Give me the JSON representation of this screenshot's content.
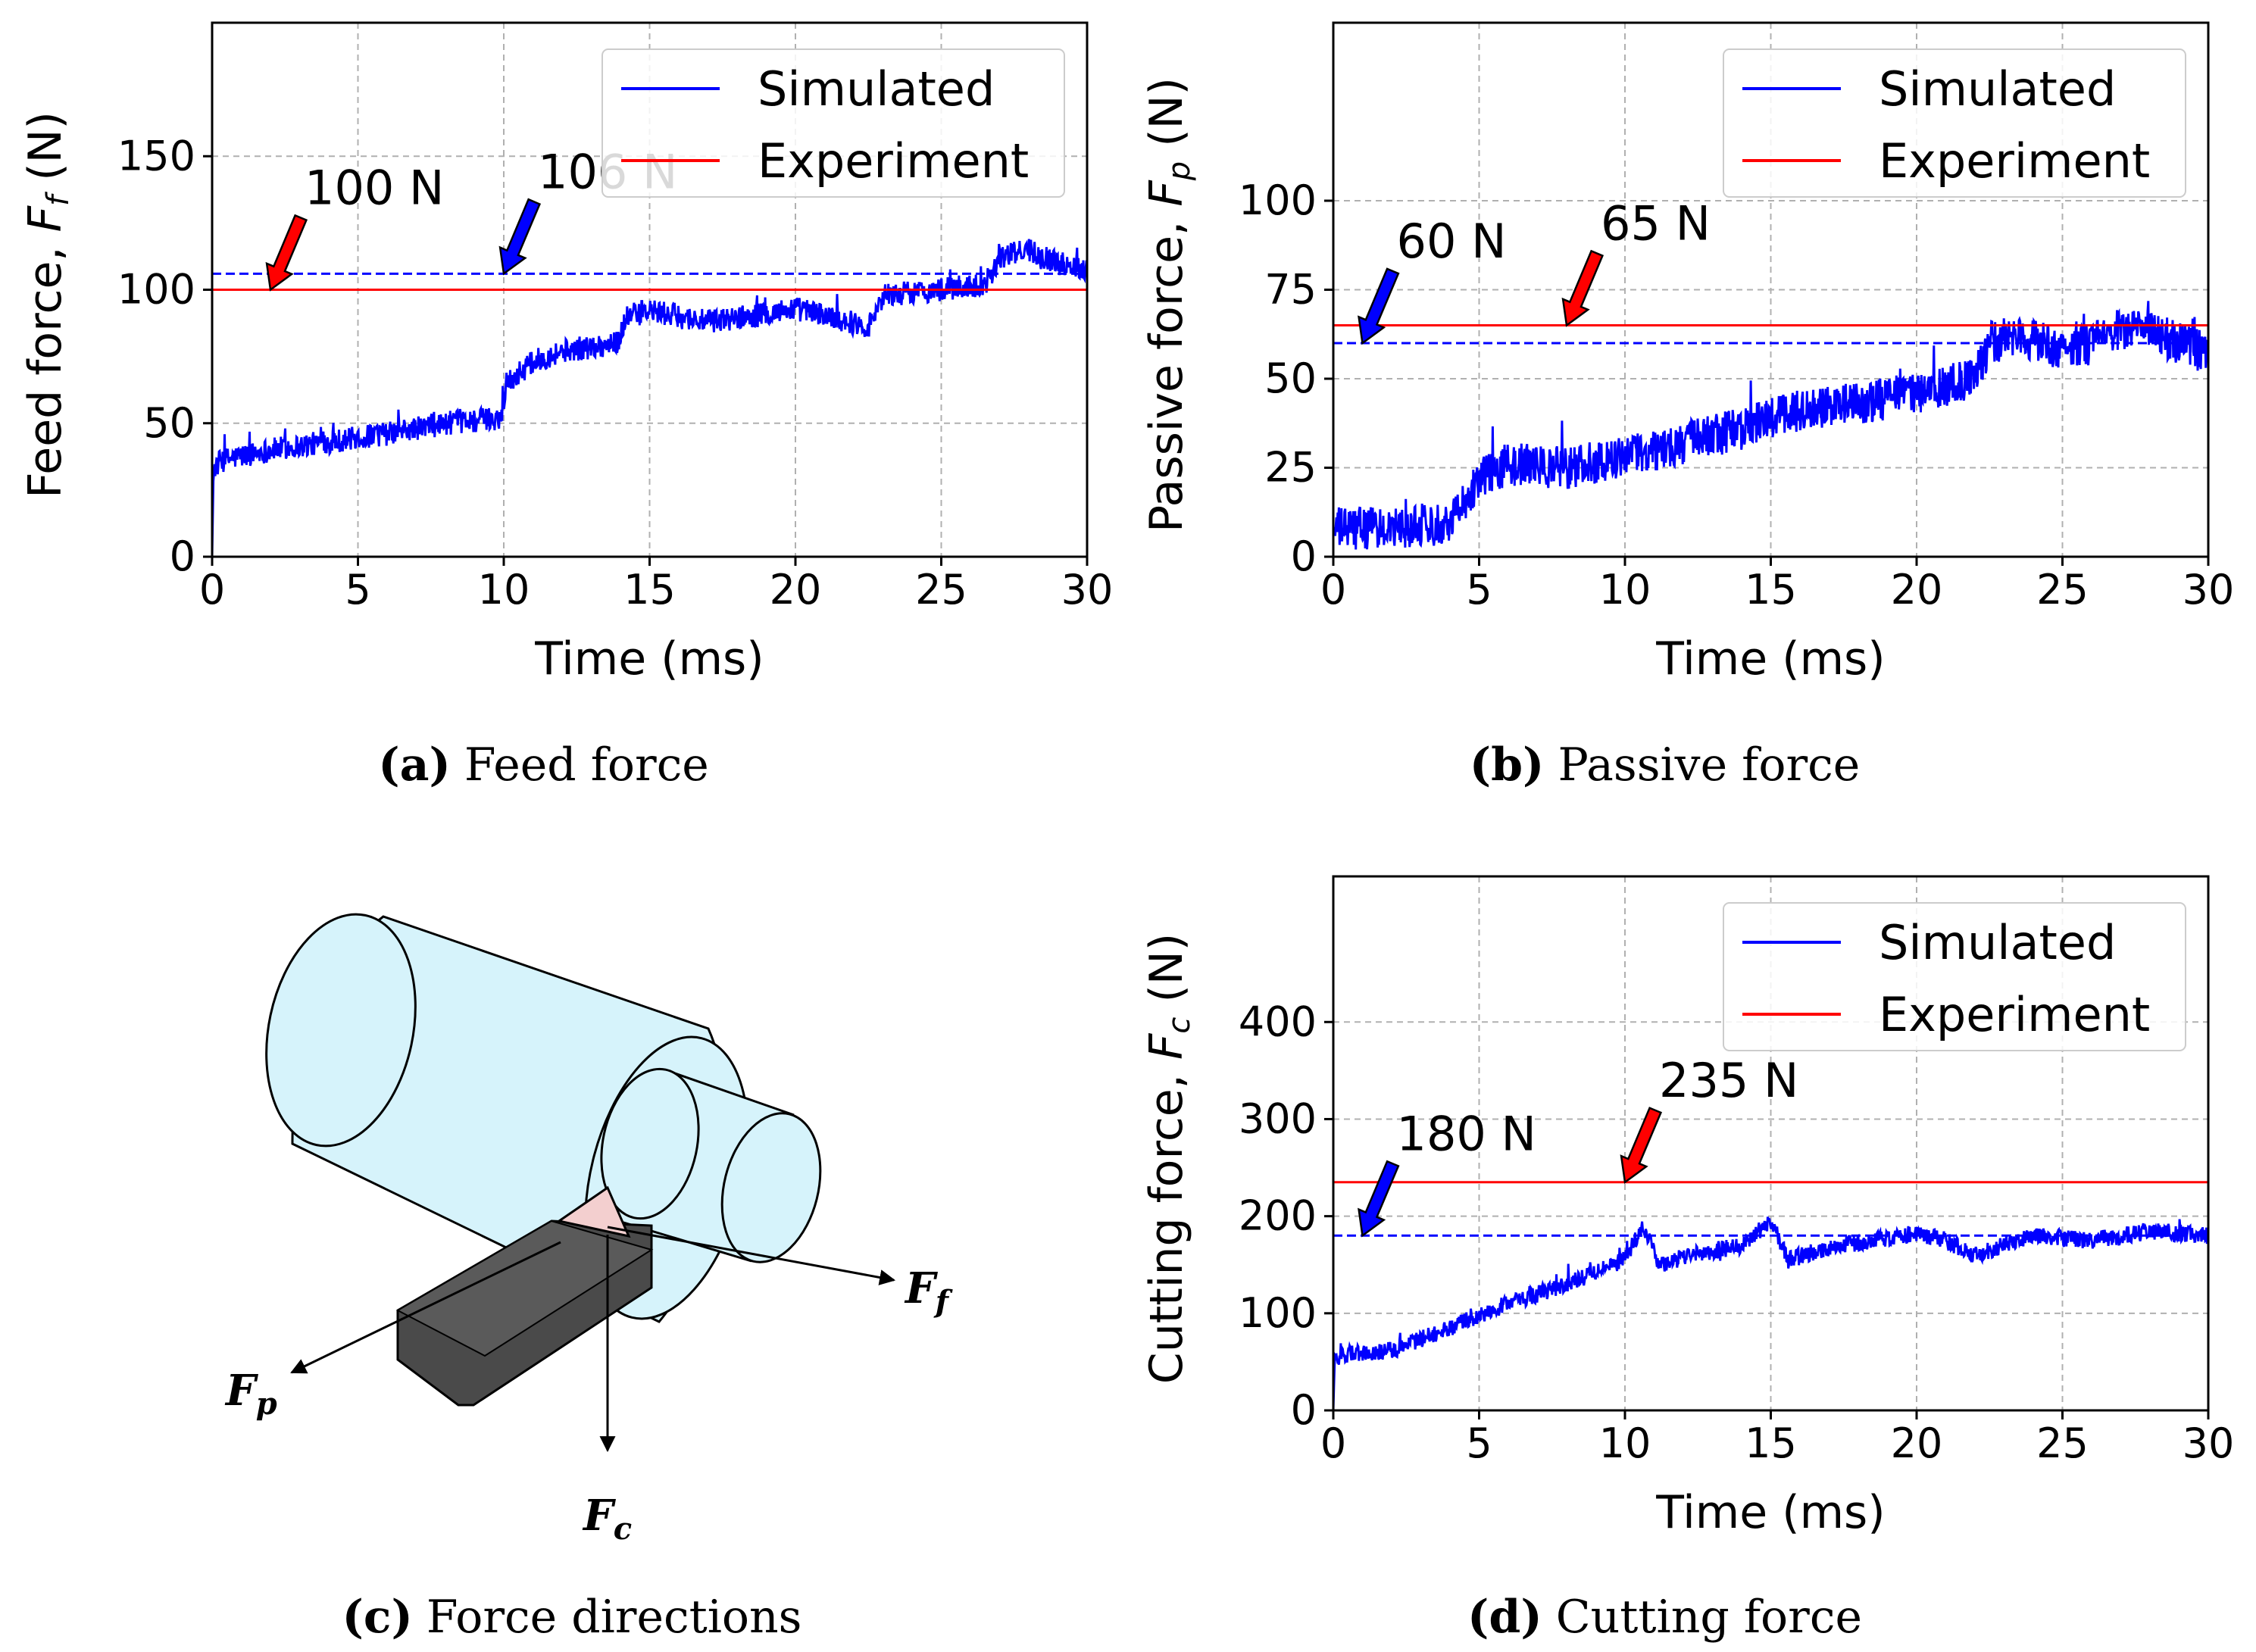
{
  "colors": {
    "simulated": "#0000ff",
    "experiment": "#ff0000",
    "grid": "#b0b0b0",
    "cylinder": "#d6f3fb",
    "tool_body": "#4a4a4a",
    "tool_tip": "#f3cfcf"
  },
  "chart_data": [
    {
      "id": "a",
      "type": "line",
      "caption_tag": "(a)",
      "caption_text": "Feed force",
      "xlabel": "Time (ms)",
      "ylabel_main": "Feed force, ",
      "ylabel_sym": "F",
      "ylabel_sub": "f",
      "ylabel_unit": " (N)",
      "xlim": [
        0,
        30
      ],
      "ylim": [
        0,
        200
      ],
      "xticks": [
        0,
        5,
        10,
        15,
        20,
        25,
        30
      ],
      "yticks": [
        0,
        50,
        100,
        150
      ],
      "legend": {
        "position": "top-right",
        "entries": [
          "Simulated",
          "Experiment"
        ]
      },
      "series": [
        {
          "name": "Simulated",
          "kind": "noisy",
          "x": [
            0,
            0.05,
            0.3,
            2,
            4,
            6,
            8,
            9.9,
            10.1,
            11,
            12,
            13.9,
            14.2,
            15,
            17,
            19,
            20,
            21.5,
            22.5,
            23,
            25,
            26.5,
            27,
            28,
            29,
            30
          ],
          "values": [
            0,
            33,
            36,
            40,
            43,
            46,
            50,
            52,
            65,
            73,
            77,
            80,
            90,
            92,
            88,
            91,
            93,
            89,
            86,
            98,
            100,
            102,
            112,
            115,
            110,
            108
          ],
          "noise": 4.5
        },
        {
          "name": "Simulated mean",
          "kind": "hline",
          "y": 106,
          "style": "dashed"
        },
        {
          "name": "Experiment",
          "kind": "hline",
          "y": 100,
          "style": "solid"
        }
      ],
      "annotations": [
        {
          "text": "100 N",
          "color": "red",
          "target": [
            2,
            100
          ]
        },
        {
          "text": "106 N",
          "color": "blue",
          "target": [
            10,
            106
          ]
        }
      ]
    },
    {
      "id": "b",
      "type": "line",
      "caption_tag": "(b)",
      "caption_text": "Passive force",
      "xlabel": "Time (ms)",
      "ylabel_main": "Passive force, ",
      "ylabel_sym": "F",
      "ylabel_sub": "p",
      "ylabel_unit": " (N)",
      "xlim": [
        0,
        30
      ],
      "ylim": [
        0,
        150
      ],
      "xticks": [
        0,
        5,
        10,
        15,
        20,
        25,
        30
      ],
      "yticks": [
        0,
        25,
        50,
        75,
        100
      ],
      "legend": {
        "position": "top-right",
        "entries": [
          "Simulated",
          "Experiment"
        ]
      },
      "series": [
        {
          "name": "Simulated",
          "kind": "noisy",
          "x": [
            0,
            2,
            4,
            5,
            6,
            8,
            10,
            12,
            14,
            16,
            18,
            20,
            22,
            22.5,
            23.5,
            25,
            26,
            27,
            28,
            29,
            30
          ],
          "values": [
            8,
            8,
            10,
            22,
            26,
            25,
            28,
            32,
            36,
            41,
            43,
            46,
            50,
            60,
            62,
            58,
            60,
            64,
            63,
            60,
            57
          ],
          "noise": 6
        },
        {
          "name": "Simulated mean",
          "kind": "hline",
          "y": 60,
          "style": "dashed"
        },
        {
          "name": "Experiment",
          "kind": "hline",
          "y": 65,
          "style": "solid"
        }
      ],
      "annotations": [
        {
          "text": "60 N",
          "color": "blue",
          "target": [
            1,
            60
          ]
        },
        {
          "text": "65 N",
          "color": "red",
          "target": [
            8,
            65
          ]
        }
      ]
    },
    {
      "id": "d",
      "type": "line",
      "caption_tag": "(d)",
      "caption_text": "Cutting force",
      "xlabel": "Time (ms)",
      "ylabel_main": "Cutting force, ",
      "ylabel_sym": "F",
      "ylabel_sub": "c",
      "ylabel_unit": " (N)",
      "xlim": [
        0,
        30
      ],
      "ylim": [
        0,
        550
      ],
      "xticks": [
        0,
        5,
        10,
        15,
        20,
        25,
        30
      ],
      "yticks": [
        0,
        100,
        200,
        300,
        400
      ],
      "legend": {
        "position": "top-right",
        "entries": [
          "Simulated",
          "Experiment"
        ]
      },
      "series": [
        {
          "name": "Simulated",
          "kind": "noisy",
          "x": [
            0,
            0.05,
            0.5,
            2,
            4,
            6,
            8,
            10,
            10.6,
            11.2,
            12,
            14,
            15,
            15.6,
            17,
            19,
            20,
            21,
            22,
            24,
            26,
            28,
            30
          ],
          "values": [
            0,
            55,
            58,
            62,
            85,
            110,
            130,
            155,
            190,
            150,
            158,
            170,
            195,
            155,
            168,
            178,
            182,
            175,
            160,
            180,
            175,
            185,
            180
          ],
          "noise": 9
        },
        {
          "name": "Simulated mean",
          "kind": "hline",
          "y": 180,
          "style": "dashed"
        },
        {
          "name": "Experiment",
          "kind": "hline",
          "y": 235,
          "style": "solid"
        }
      ],
      "annotations": [
        {
          "text": "180 N",
          "color": "blue",
          "target": [
            1,
            180
          ]
        },
        {
          "text": "235 N",
          "color": "red",
          "target": [
            10,
            235
          ]
        }
      ]
    }
  ],
  "diagram": {
    "caption_tag": "(c)",
    "caption_text": "Force directions",
    "labels": {
      "ff": "F",
      "ff_sub": "f",
      "fp": "F",
      "fp_sub": "p",
      "fc": "F",
      "fc_sub": "c"
    }
  }
}
